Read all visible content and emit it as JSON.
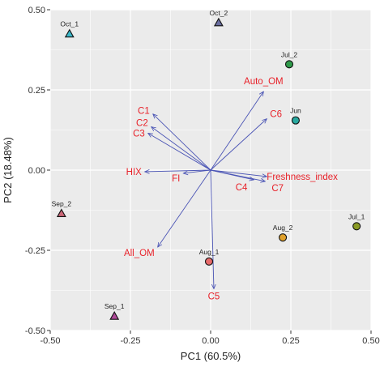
{
  "chart_data": {
    "type": "scatter",
    "subtype": "pca-biplot",
    "title": "",
    "xlabel": "PC1 (60.5%)",
    "ylabel": "PC2 (18.48%)",
    "xlim": [
      -0.5,
      0.5
    ],
    "ylim": [
      -0.5,
      0.5
    ],
    "x_ticks": [
      -0.5,
      -0.25,
      0.0,
      0.25,
      0.5
    ],
    "x_tick_labels": [
      "-0.50",
      "-0.25",
      "0.00",
      "0.25",
      "0.50"
    ],
    "y_ticks": [
      -0.5,
      -0.25,
      0.0,
      0.25,
      0.5
    ],
    "y_tick_labels": [
      "-0.50",
      "-0.25",
      "0.00",
      "0.25",
      "0.50"
    ],
    "grid": true,
    "legend": "none",
    "colors": {
      "panel_bg": "#ebebeb",
      "grid": "#ffffff",
      "arrow": "#4b55b5",
      "loading_label": "#e8222a",
      "sample_label": "#222222"
    },
    "samples": [
      {
        "name": "Oct_1",
        "x": -0.44,
        "y": 0.425,
        "shape": "triangle",
        "color": "#3bb8c9"
      },
      {
        "name": "Oct_2",
        "x": 0.025,
        "y": 0.46,
        "shape": "triangle",
        "color": "#6b6fa2"
      },
      {
        "name": "Jul_2",
        "x": 0.245,
        "y": 0.33,
        "shape": "circle",
        "color": "#2f9a4a"
      },
      {
        "name": "Jun",
        "x": 0.265,
        "y": 0.155,
        "shape": "circle",
        "color": "#2aa9a0"
      },
      {
        "name": "Jul_1",
        "x": 0.455,
        "y": -0.175,
        "shape": "circle",
        "color": "#8a9a24"
      },
      {
        "name": "Aug_2",
        "x": 0.225,
        "y": -0.21,
        "shape": "circle",
        "color": "#e0a02a"
      },
      {
        "name": "Aug_1",
        "x": -0.005,
        "y": -0.285,
        "shape": "circle",
        "color": "#e86a6a"
      },
      {
        "name": "Sep_2",
        "x": -0.465,
        "y": -0.135,
        "shape": "triangle",
        "color": "#cc6677"
      },
      {
        "name": "Sep_1",
        "x": -0.3,
        "y": -0.455,
        "shape": "triangle",
        "color": "#b04a9a"
      }
    ],
    "loadings": [
      {
        "name": "Auto_OM",
        "x": 0.165,
        "y": 0.245
      },
      {
        "name": "C1",
        "x": -0.18,
        "y": 0.175
      },
      {
        "name": "C2",
        "x": -0.185,
        "y": 0.135
      },
      {
        "name": "C3",
        "x": -0.195,
        "y": 0.115
      },
      {
        "name": "C6",
        "x": 0.175,
        "y": 0.16
      },
      {
        "name": "HIX",
        "x": -0.205,
        "y": -0.005
      },
      {
        "name": "FI",
        "x": -0.085,
        "y": -0.01
      },
      {
        "name": "Freshness_index",
        "x": 0.175,
        "y": -0.02
      },
      {
        "name": "C4",
        "x": 0.135,
        "y": -0.03
      },
      {
        "name": "C7",
        "x": 0.17,
        "y": -0.035
      },
      {
        "name": "All_OM",
        "x": -0.165,
        "y": -0.24
      },
      {
        "name": "C5",
        "x": 0.01,
        "y": -0.37
      }
    ]
  }
}
